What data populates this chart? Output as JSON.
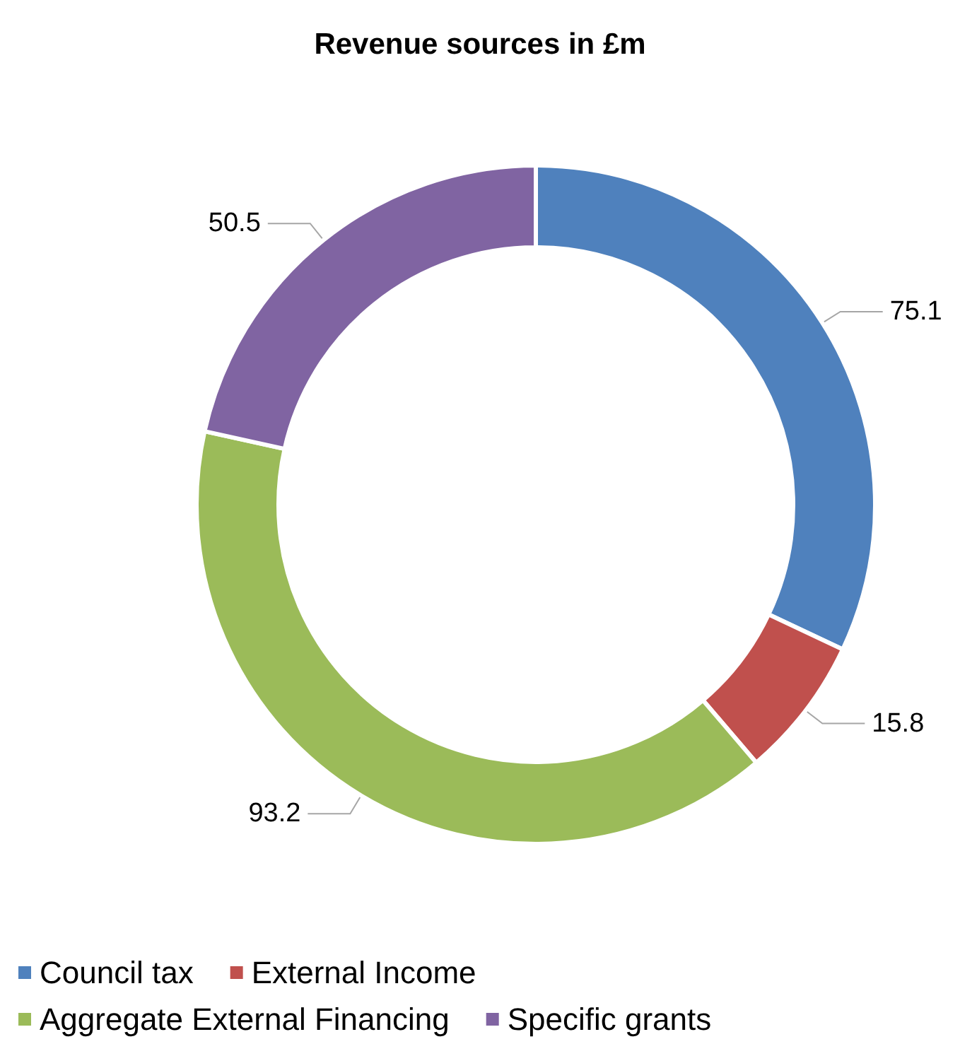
{
  "chart_data": {
    "type": "donut",
    "title": "Revenue sources in £m",
    "categories": [
      "Council tax",
      "External Income",
      "Aggregate External Financing",
      "Specific grants"
    ],
    "values": [
      75.1,
      15.8,
      93.2,
      50.5
    ],
    "colors": [
      "#4f81bd",
      "#c0504d",
      "#9bbb59",
      "#8064a2"
    ],
    "data_labels": true,
    "legend": "bottom"
  }
}
